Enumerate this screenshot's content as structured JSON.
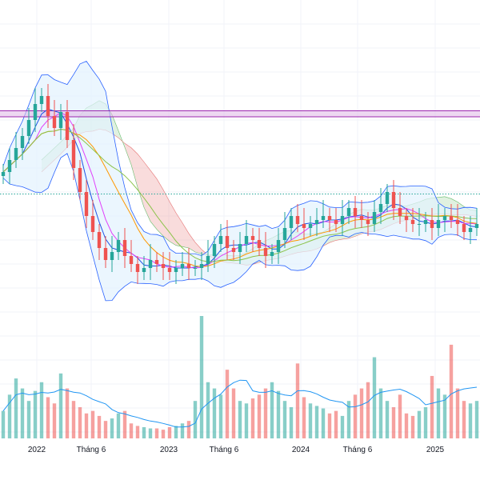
{
  "chart_data": {
    "type": "candlestick",
    "x_axis": {
      "ticks": [
        "2022",
        "Tháng 6",
        "2023",
        "Tháng 6",
        "2024",
        "Tháng 6",
        "2025"
      ]
    },
    "horizontal_band": {
      "y_range": [
        70.8,
        72.3
      ],
      "color": "#9c27b0",
      "fill": "#e1bee7"
    },
    "dotted_reference": {
      "y": 51.5,
      "color": "#26a69a"
    },
    "grid": true,
    "colors": {
      "up": "#26a69a",
      "down": "#ef5350",
      "bollinger": "#2962ff",
      "bollinger_fill": "#e3f2fd",
      "ma_orange": "#ff9800",
      "ma_green": "#8bc34a",
      "ma_magenta": "#e040fb",
      "ma_blue": "#1e53e5",
      "cloud_green": "#a5d6a7",
      "cloud_red": "#ef9a9a",
      "volume_ma": "#2196f3"
    },
    "series": {
      "close": [
        57,
        60,
        63,
        66,
        70,
        74,
        76,
        71,
        68,
        72,
        65,
        58,
        52,
        46,
        42,
        38,
        35,
        37,
        40,
        36,
        34,
        32,
        33,
        35,
        34,
        33,
        32,
        33,
        34,
        33,
        33,
        34,
        36,
        39,
        41,
        38,
        37,
        39,
        41,
        40,
        38,
        36,
        37,
        40,
        43,
        46,
        44,
        43,
        44,
        45,
        46,
        45,
        44,
        46,
        48,
        46,
        45,
        44,
        47,
        49,
        52,
        48,
        46,
        45,
        44,
        44,
        45,
        43,
        45,
        46,
        45,
        44,
        42,
        43,
        44
      ],
      "volume": [
        22,
        35,
        48,
        40,
        30,
        38,
        45,
        33,
        28,
        52,
        40,
        30,
        25,
        20,
        22,
        18,
        14,
        16,
        20,
        22,
        12,
        10,
        9,
        8,
        8,
        7,
        9,
        10,
        12,
        14,
        30,
        98,
        45,
        40,
        35,
        55,
        40,
        30,
        28,
        32,
        35,
        40,
        45,
        38,
        30,
        25,
        60,
        33,
        28,
        26,
        24,
        20,
        22,
        18,
        30,
        35,
        40,
        45,
        65,
        40,
        30,
        25,
        35,
        20,
        18,
        22,
        25,
        50,
        40,
        35,
        75,
        40,
        30,
        28,
        30
      ]
    }
  }
}
